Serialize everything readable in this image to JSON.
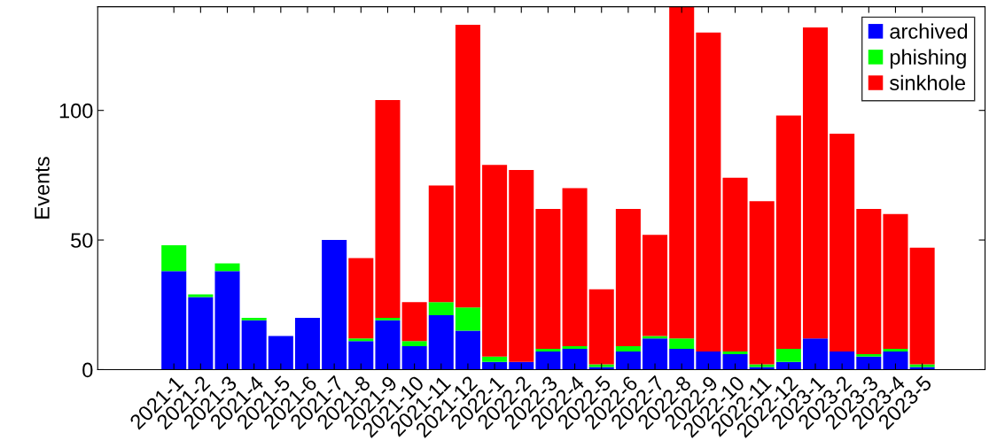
{
  "chart_data": {
    "type": "bar",
    "stacked": true,
    "ylabel": "Events",
    "categories": [
      "2021-1",
      "2021-2",
      "2021-3",
      "2021-4",
      "2021-5",
      "2021-6",
      "2021-7",
      "2021-8",
      "2021-9",
      "2021-10",
      "2021-11",
      "2021-12",
      "2022-1",
      "2022-2",
      "2022-3",
      "2022-4",
      "2022-5",
      "2022-6",
      "2022-7",
      "2022-8",
      "2022-9",
      "2022-10",
      "2022-11",
      "2022-12",
      "2023-1",
      "2023-2",
      "2023-3",
      "2023-4",
      "2023-5"
    ],
    "series": [
      {
        "name": "archived",
        "color": "#0000ff",
        "values": [
          38,
          28,
          38,
          19,
          13,
          20,
          50,
          11,
          19,
          9,
          21,
          15,
          3,
          3,
          7,
          8,
          1,
          7,
          12,
          8,
          7,
          6,
          1,
          3,
          12,
          7,
          5,
          7,
          1
        ]
      },
      {
        "name": "phishing",
        "color": "#00ff00",
        "values": [
          10,
          1,
          3,
          1,
          0,
          0,
          0,
          1,
          1,
          2,
          5,
          9,
          2,
          0,
          1,
          1,
          1,
          2,
          1,
          4,
          0,
          1,
          1,
          5,
          0,
          0,
          1,
          1,
          1
        ]
      },
      {
        "name": "sinkhole",
        "color": "#ff0000",
        "values": [
          0,
          0,
          0,
          0,
          0,
          0,
          0,
          31,
          84,
          15,
          45,
          109,
          74,
          74,
          54,
          61,
          29,
          53,
          39,
          128,
          123,
          67,
          63,
          90,
          120,
          84,
          56,
          52,
          45
        ]
      }
    ],
    "ylim": [
      0,
      140
    ],
    "yticks": [
      0,
      50,
      100
    ],
    "legend": "top right",
    "grid": false
  }
}
